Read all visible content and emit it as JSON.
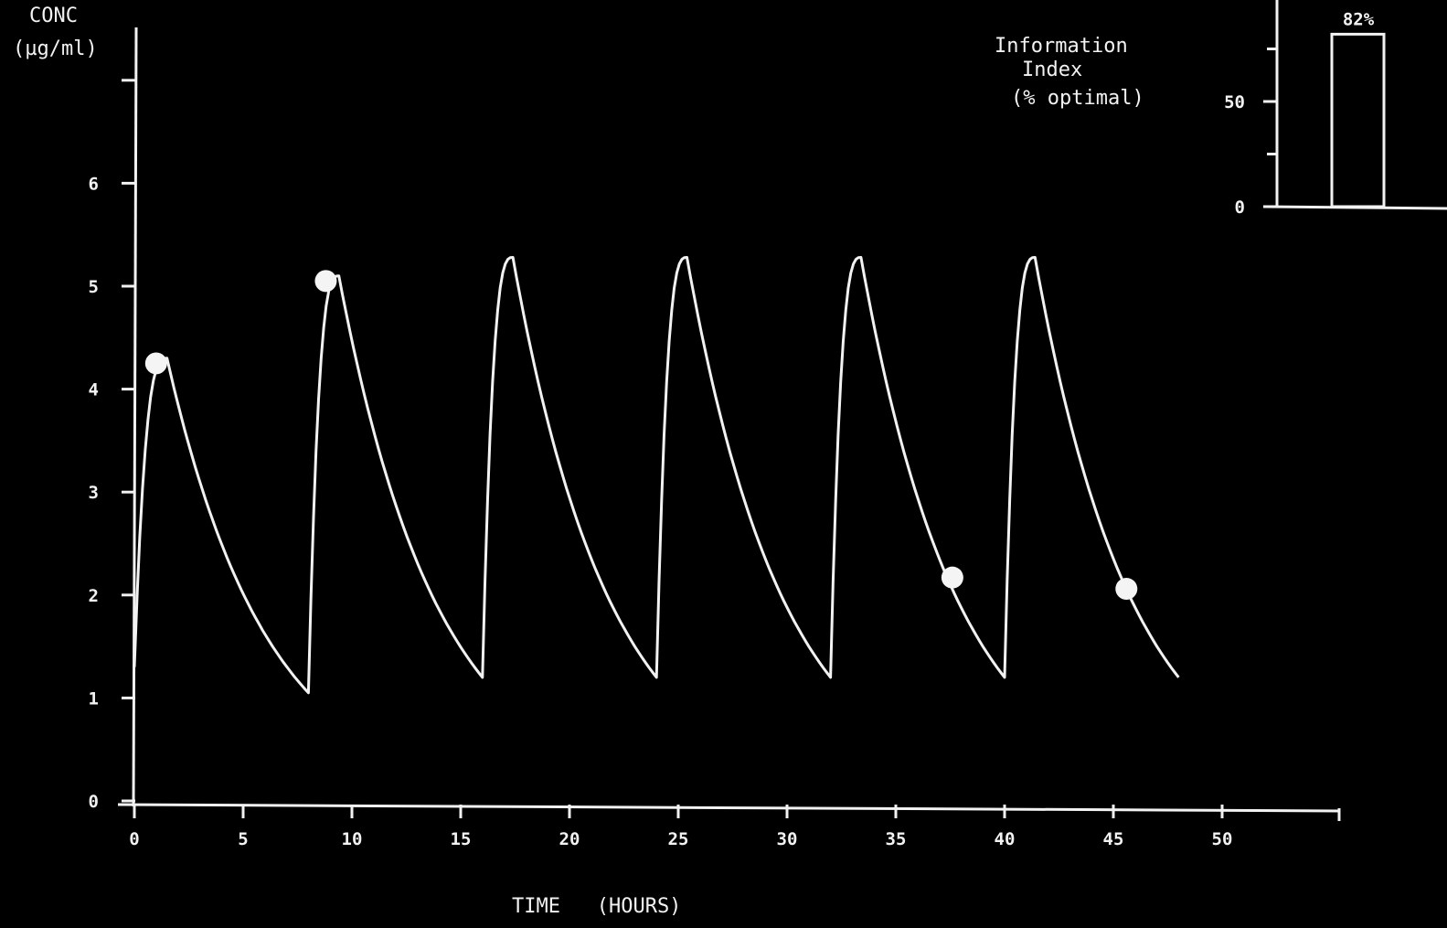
{
  "chart_data": [
    {
      "type": "line",
      "ylabel_line1": "CONC",
      "ylabel_line2": "(µg/ml)",
      "xlabel": "TIME   (HOURS)",
      "xlim": [
        0,
        55
      ],
      "ylim": [
        0,
        7
      ],
      "x_ticks": [
        "0",
        "5",
        "10",
        "15",
        "20",
        "25",
        "30",
        "35",
        "40",
        "45",
        "50"
      ],
      "y_ticks": [
        "0",
        "1",
        "2",
        "3",
        "4",
        "5",
        "6"
      ],
      "series": [
        {
          "x": [
            0,
            1.5,
            8,
            9.4,
            16,
            17.4,
            24,
            25.4,
            32,
            33.4,
            40,
            41.4,
            48
          ],
          "y": [
            1.3,
            4.3,
            1.05,
            5.1,
            1.2,
            5.28,
            1.2,
            5.28,
            1.2,
            5.28,
            1.2,
            5.28,
            1.2
          ]
        }
      ],
      "markers": [
        {
          "x": 1.0,
          "y": 4.25
        },
        {
          "x": 8.8,
          "y": 5.05
        },
        {
          "x": 37.6,
          "y": 2.17
        },
        {
          "x": 45.6,
          "y": 2.06
        }
      ],
      "color": "#f2f2f2"
    },
    {
      "type": "bar",
      "title_lines": [
        "Information",
        "Index",
        "(% optimal)"
      ],
      "categories": [
        ""
      ],
      "values": [
        82
      ],
      "value_label": "82%",
      "y_ticks": [
        "0",
        "50"
      ],
      "ylim": [
        0,
        100
      ]
    }
  ]
}
